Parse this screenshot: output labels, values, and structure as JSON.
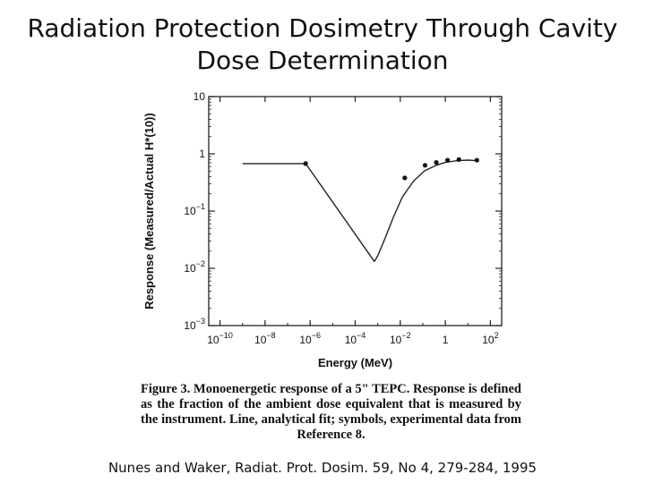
{
  "slide": {
    "title_line1": "Radiation Protection Dosimetry Through Cavity",
    "title_line2": "Dose Determination",
    "caption": "Figure 3. Monoenergetic response of a 5\" TEPC. Response is defined as the fraction of the ambient dose equivalent that is measured by the instrument. Line, analytical fit; symbols, experimental data from Reference 8.",
    "citation": "Nunes and Waker, Radiat. Prot. Dosim. 59, No 4, 279-284, 1995"
  },
  "chart_data": {
    "type": "line",
    "title": "",
    "xlabel": "Energy (MeV)",
    "ylabel": "Response (Measured/Actual H*(10))",
    "x_scale": "log",
    "y_scale": "log",
    "xlim_exp": [
      -10.5,
      2.5
    ],
    "ylim_exp": [
      -3,
      1
    ],
    "x_ticks": [
      {
        "exp": -10,
        "base": "10",
        "sup": "−10"
      },
      {
        "exp": -8,
        "base": "10",
        "sup": "−8"
      },
      {
        "exp": -6,
        "base": "10",
        "sup": "−6"
      },
      {
        "exp": -4,
        "base": "10",
        "sup": "−4"
      },
      {
        "exp": -2,
        "base": "10",
        "sup": "−2"
      },
      {
        "exp": 0,
        "base": "1",
        "sup": ""
      },
      {
        "exp": 2,
        "base": "10",
        "sup": "2"
      }
    ],
    "y_ticks": [
      {
        "exp": 1,
        "base": "10",
        "sup": ""
      },
      {
        "exp": 0,
        "base": "1",
        "sup": ""
      },
      {
        "exp": -1,
        "base": "10",
        "sup": "−1"
      },
      {
        "exp": -2,
        "base": "10",
        "sup": "−2"
      },
      {
        "exp": -3,
        "base": "10",
        "sup": "−3"
      }
    ],
    "series": [
      {
        "name": "Analytical fit",
        "log_x": [
          -9,
          -6.2,
          -3.15,
          -3.0,
          -2.7,
          -2.3,
          -1.9,
          -1.4,
          -0.9,
          -0.4,
          0,
          0.5,
          1.0,
          1.4
        ],
        "log_y": [
          -0.17,
          -0.17,
          -1.88,
          -1.78,
          -1.5,
          -1.1,
          -0.75,
          -0.47,
          -0.29,
          -0.2,
          -0.15,
          -0.12,
          -0.11,
          -0.12
        ]
      },
      {
        "name": "Experimental data (Reference 8)",
        "log_x": [
          -6.2,
          -1.8,
          -0.9,
          -0.4,
          0.1,
          0.6,
          1.4
        ],
        "log_y": [
          -0.17,
          -0.42,
          -0.2,
          -0.15,
          -0.11,
          -0.1,
          -0.11
        ]
      }
    ]
  }
}
